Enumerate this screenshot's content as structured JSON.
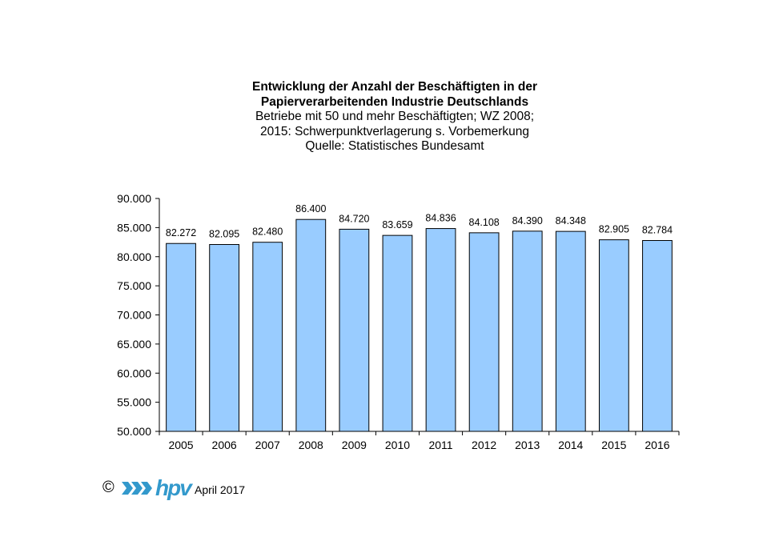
{
  "chart_data": {
    "type": "bar",
    "title_lines": [
      "Entwicklung  der Anzahl  der Beschäftigten  in der",
      "Papierverarbeitenden  Industrie Deutschlands"
    ],
    "subtitle_lines": [
      "Betriebe mit 50 und mehr Beschäftigten;  WZ 2008;",
      "2015: Schwerpunktverlagerung  s. Vorbemerkung",
      "Quelle:  Statistisches  Bundesamt"
    ],
    "categories": [
      "2005",
      "2006",
      "2007",
      "2008",
      "2009",
      "2010",
      "2011",
      "2012",
      "2013",
      "2014",
      "2015",
      "2016"
    ],
    "values": [
      82272,
      82095,
      82480,
      86400,
      84720,
      83659,
      84836,
      84108,
      84390,
      84348,
      82905,
      82784
    ],
    "value_labels": [
      "82.272",
      "82.095",
      "82.480",
      "86.400",
      "84.720",
      "83.659",
      "84.836",
      "84.108",
      "84.390",
      "84.348",
      "82.905",
      "82.784"
    ],
    "ylim": [
      50000,
      90000
    ],
    "yticks": [
      50000,
      55000,
      60000,
      65000,
      70000,
      75000,
      80000,
      85000,
      90000
    ],
    "ytick_labels": [
      "50.000",
      "55.000",
      "60.000",
      "65.000",
      "70.000",
      "75.000",
      "80.000",
      "85.000",
      "90.000"
    ],
    "xlabel": "",
    "ylabel": "",
    "grid": false,
    "bar_color": "#99ccff",
    "bar_edge_color": "#000000"
  },
  "footer": {
    "copyright": "©",
    "logo_text": "hpv",
    "logo_color": "#3399cc",
    "date": "April 2017"
  }
}
